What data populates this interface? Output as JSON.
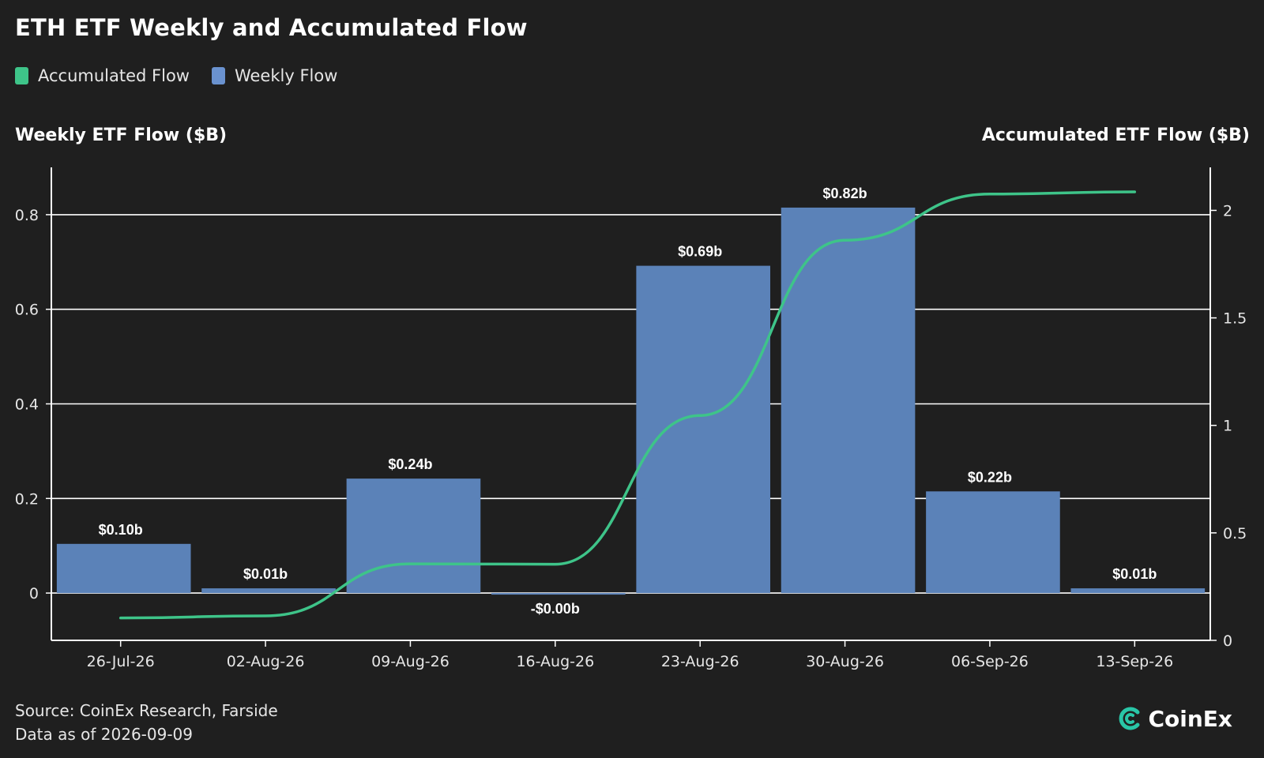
{
  "title": "ETH ETF Weekly and Accumulated Flow",
  "legend": [
    {
      "label": "Accumulated Flow",
      "color": "#3ec489"
    },
    {
      "label": "Weekly Flow",
      "color": "#6a92cf"
    }
  ],
  "footer": {
    "source": "Source: CoinEx Research, Farside",
    "data_as_of": "Data as of 2026-09-09"
  },
  "brand": {
    "name": "CoinEx",
    "icon": "coinex-logo-icon",
    "accent": "#29c6a7"
  },
  "chart_data": {
    "type": "bar",
    "title": "ETH ETF Weekly and Accumulated Flow",
    "categories": [
      "26-Jul-26",
      "02-Aug-26",
      "09-Aug-26",
      "16-Aug-26",
      "23-Aug-26",
      "30-Aug-26",
      "06-Sep-26",
      "13-Sep-26"
    ],
    "series": [
      {
        "name": "Weekly Flow",
        "type": "bar",
        "axis": "left",
        "color": "#5b82b8",
        "values": [
          0.104,
          0.01,
          0.242,
          -0.002,
          0.692,
          0.815,
          0.215,
          0.01
        ],
        "labels": [
          "$0.10b",
          "$0.01b",
          "$0.24b",
          "-$0.00b",
          "$0.69b",
          "$0.82b",
          "$0.22b",
          "$0.01b"
        ]
      },
      {
        "name": "Accumulated Flow",
        "type": "line",
        "axis": "right",
        "color": "#3ec489",
        "values": [
          0.104,
          0.114,
          0.356,
          0.354,
          1.046,
          1.861,
          2.076,
          2.086
        ]
      }
    ],
    "ylabel": "Weekly ETF Flow ($B)",
    "y2label": "Accumulated ETF Flow ($B)",
    "ylim": [
      -0.1,
      0.9
    ],
    "y2lim": [
      0,
      2.2
    ],
    "yticks": [
      0,
      0.2,
      0.4,
      0.6,
      0.8
    ],
    "y2ticks": [
      0,
      0.5,
      1,
      1.5,
      2
    ],
    "ytick_labels": [
      "0",
      "0.2",
      "0.4",
      "0.6",
      "0.8"
    ],
    "y2tick_labels": [
      "0",
      "0.5",
      "1",
      "1.5",
      "2"
    ],
    "grid": true,
    "legend_position": "top-left"
  }
}
